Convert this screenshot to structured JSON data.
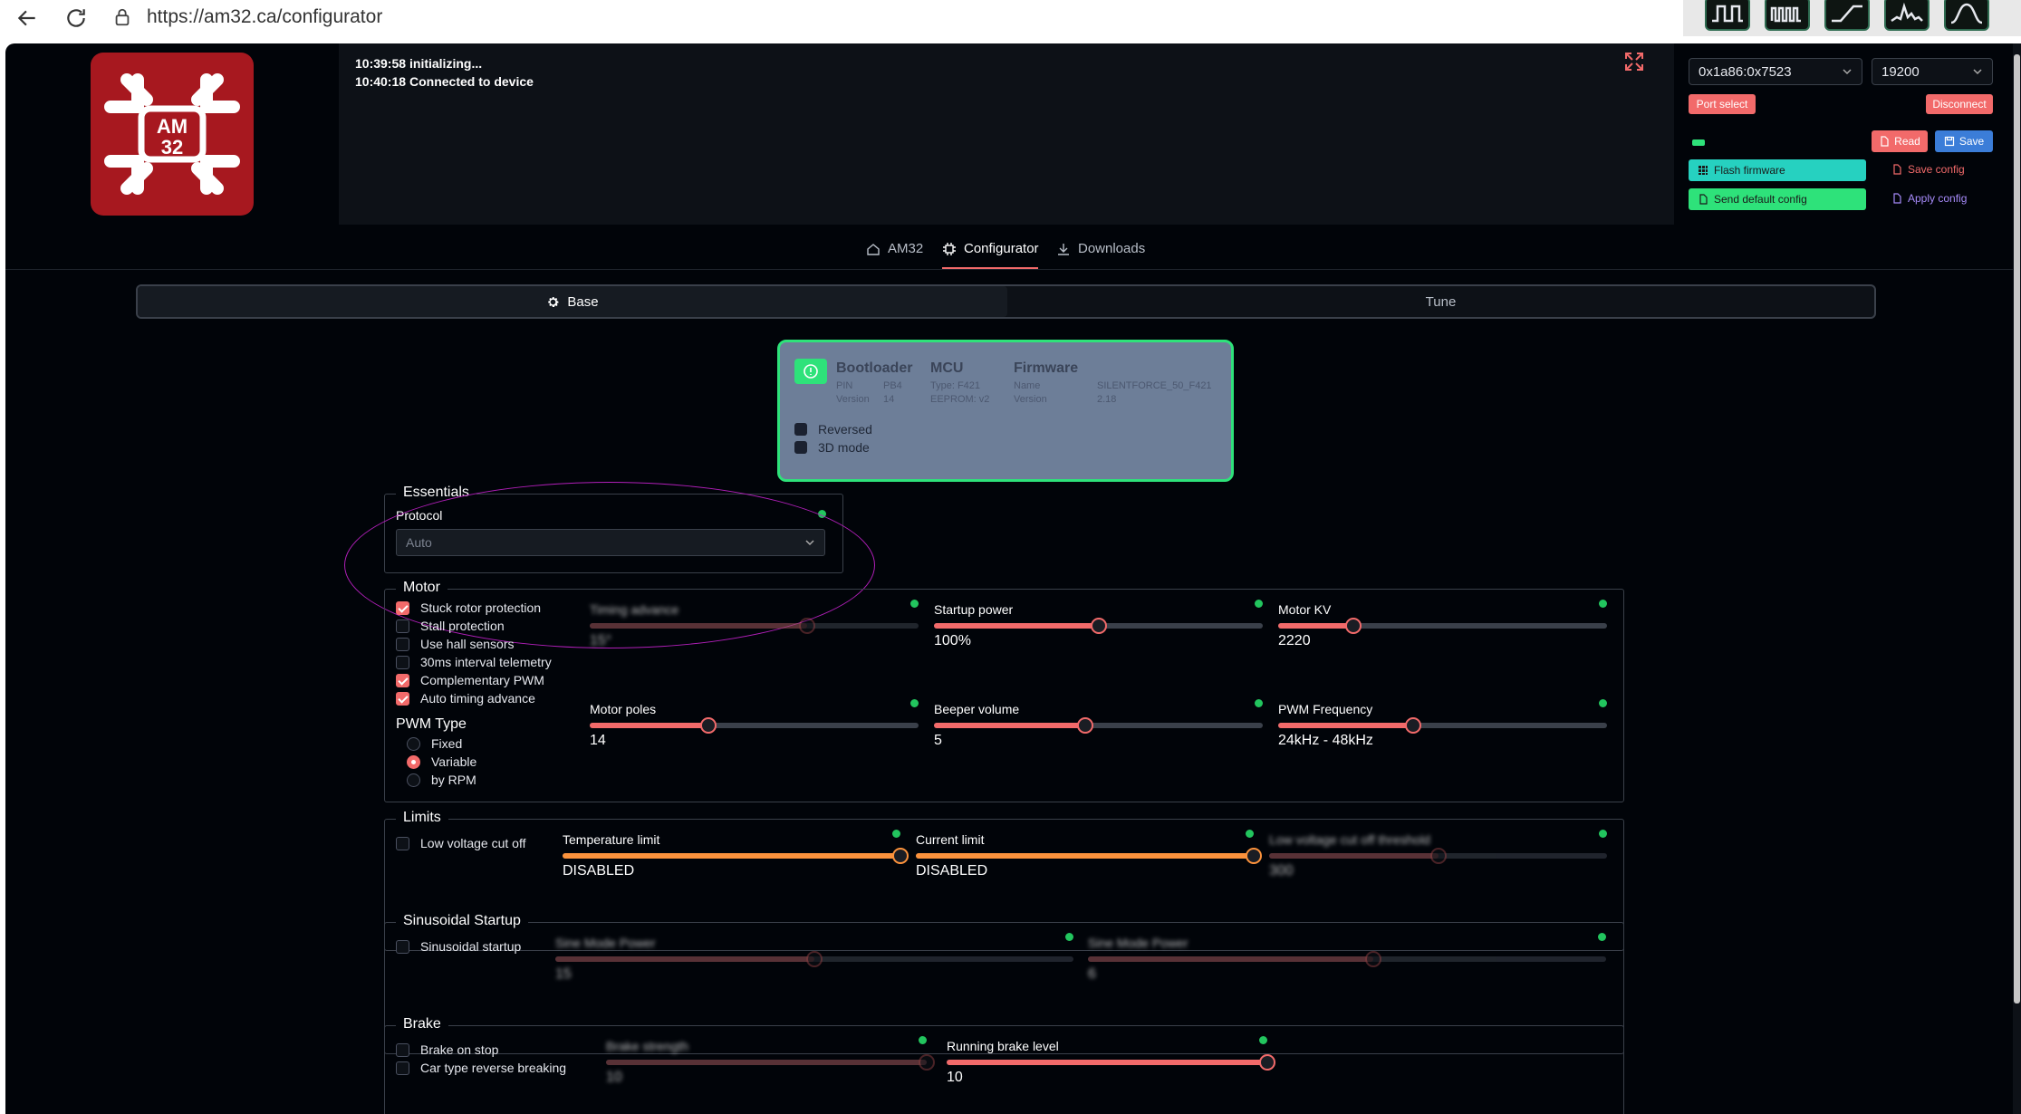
{
  "browser": {
    "url": "https://am32.ca/configurator",
    "extensions": [
      "square-wave-icon",
      "multi-wave-icon",
      "ramp-icon",
      "spectrum-icon",
      "bell-curve-icon"
    ]
  },
  "logo": {
    "line1": "AM",
    "line2": "32",
    "bg": "#a7181f"
  },
  "log": {
    "lines": [
      {
        "time": "10:39:58",
        "msg": "initializing..."
      },
      {
        "time": "10:40:18",
        "msg": "Connected to device"
      }
    ]
  },
  "connection": {
    "port_value": "0x1a86:0x7523",
    "baud_value": "19200",
    "port_select": "Port select",
    "disconnect": "Disconnect",
    "read": "Read",
    "save": "Save",
    "flash_firmware": "Flash firmware",
    "save_config": "Save config",
    "send_default_config": "Send default config",
    "apply_config": "Apply config"
  },
  "nav": {
    "tabs": [
      "AM32",
      "Configurator",
      "Downloads"
    ],
    "active": "Configurator"
  },
  "subtabs": {
    "base": "Base",
    "tune": "Tune"
  },
  "device": {
    "bootloader_title": "Bootloader",
    "bootloader": [
      {
        "k": "PIN",
        "v": "PB4"
      },
      {
        "k": "Version",
        "v": "14"
      }
    ],
    "mcu_title": "MCU",
    "mcu": [
      "Type: F421",
      "EEPROM: v2"
    ],
    "firmware_title": "Firmware",
    "firmware": [
      {
        "k": "Name",
        "v": "SILENTFORCE_50_F421"
      },
      {
        "k": "Version",
        "v": "2.18"
      }
    ],
    "reversed": "Reversed",
    "mode3d": "3D mode"
  },
  "essentials": {
    "title": "Essentials",
    "protocol_label": "Protocol",
    "protocol_value": "Auto"
  },
  "motor": {
    "title": "Motor",
    "checks": [
      {
        "label": "Stuck rotor protection",
        "checked": true
      },
      {
        "label": "Stall protection",
        "checked": false
      },
      {
        "label": "Use hall sensors",
        "checked": false
      },
      {
        "label": "30ms interval telemetry",
        "checked": false
      },
      {
        "label": "Complementary PWM",
        "checked": true
      },
      {
        "label": "Auto timing advance",
        "checked": true
      }
    ],
    "pwm_type_title": "PWM Type",
    "pwm_types": [
      {
        "label": "Fixed",
        "checked": false
      },
      {
        "label": "Variable",
        "checked": true
      },
      {
        "label": "by RPM",
        "checked": false
      }
    ],
    "sliders": [
      {
        "label": "Timing advance",
        "value": "15°",
        "pos": 0.66,
        "disabled": true
      },
      {
        "label": "Startup power",
        "value": "100%",
        "pos": 0.5,
        "disabled": false
      },
      {
        "label": "Motor KV",
        "value": "2220",
        "pos": 0.23,
        "disabled": false
      },
      {
        "label": "Motor poles",
        "value": "14",
        "pos": 0.36,
        "disabled": false
      },
      {
        "label": "Beeper volume",
        "value": "5",
        "pos": 0.46,
        "disabled": false
      },
      {
        "label": "PWM Frequency",
        "value": "24kHz - 48kHz",
        "pos": 0.41,
        "disabled": false
      }
    ]
  },
  "limits": {
    "title": "Limits",
    "low_voltage_cutoff": "Low voltage cut off",
    "sliders": [
      {
        "label": "Temperature limit",
        "value": "DISABLED",
        "pos": 1.0,
        "disabled": false
      },
      {
        "label": "Current limit",
        "value": "DISABLED",
        "pos": 1.0,
        "disabled": false
      },
      {
        "label": "Low voltage cut off threshold",
        "value": "300",
        "pos": 0.5,
        "disabled": true
      }
    ]
  },
  "sinusoidal": {
    "title": "Sinusoidal Startup",
    "checkbox": "Sinusoidal startup",
    "sliders": [
      {
        "label": "Sine Mode Power",
        "value": "15",
        "pos": 0.5,
        "disabled": true
      },
      {
        "label": "Sine Mode Power",
        "value": "6",
        "pos": 0.55,
        "disabled": true
      }
    ]
  },
  "brake": {
    "title": "Brake",
    "checks": [
      "Brake on stop",
      "Car type reverse breaking"
    ],
    "sliders": [
      {
        "label": "Brake strength",
        "value": "10",
        "pos": 1.0,
        "disabled": true
      },
      {
        "label": "Running brake level",
        "value": "10",
        "pos": 1.0,
        "disabled": false
      }
    ]
  },
  "colors": {
    "accent": "#f26a6a",
    "ok": "#22c55e",
    "card_border": "#2ee27a",
    "orange": "#fb923c"
  }
}
